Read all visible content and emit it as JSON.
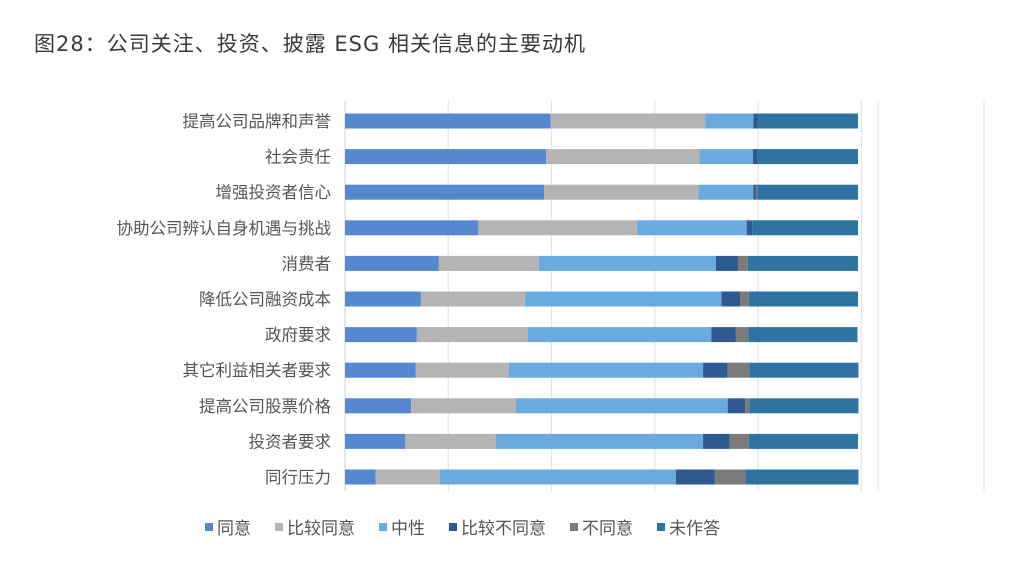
{
  "chart_data": {
    "type": "bar",
    "orientation": "horizontal",
    "stacked": "percent",
    "title": "图28：公司关注、投资、披露 ESG 相关信息的主要动机",
    "xlabel": "",
    "ylabel": "",
    "xlim": [
      0,
      100
    ],
    "grid": true,
    "legend_position": "bottom",
    "categories": [
      "提高公司品牌和声誉",
      "社会责任",
      "增强投资者信心",
      "协助公司辨认自身机遇与挑战",
      "消费者",
      "降低公司融资成本",
      "政府要求",
      "其它利益相关者要求",
      "提高公司股票价格",
      "投资者要求",
      "同行压力"
    ],
    "series": [
      {
        "name": "同意",
        "color": "#5588d0",
        "values": [
          40.1,
          39.2,
          38.8,
          26.0,
          18.3,
          14.8,
          14.0,
          13.8,
          12.9,
          11.7,
          6.0
        ]
      },
      {
        "name": "比较同意",
        "color": "#b5b4b5",
        "values": [
          30.1,
          29.9,
          30.1,
          30.9,
          19.5,
          20.3,
          21.6,
          18.1,
          20.4,
          17.7,
          12.5
        ]
      },
      {
        "name": "中性",
        "color": "#6aaade",
        "values": [
          9.4,
          10.4,
          10.7,
          21.4,
          34.5,
          38.3,
          35.8,
          37.9,
          41.3,
          40.4,
          46.0
        ]
      },
      {
        "name": "比较不同意",
        "color": "#2f5a91",
        "values": [
          0.8,
          0.9,
          0.5,
          1.1,
          4.3,
          3.6,
          4.8,
          4.8,
          3.4,
          5.2,
          7.6
        ]
      },
      {
        "name": "不同意",
        "color": "#7b7b7b",
        "values": [
          0.0,
          0.0,
          0.3,
          0.0,
          1.9,
          1.7,
          2.4,
          4.2,
          0.8,
          3.7,
          5.9
        ]
      },
      {
        "name": "未作答",
        "color": "#2e73a1",
        "values": [
          19.6,
          19.6,
          19.6,
          20.6,
          21.5,
          21.3,
          21.3,
          21.3,
          21.3,
          21.3,
          22.1
        ]
      }
    ]
  }
}
